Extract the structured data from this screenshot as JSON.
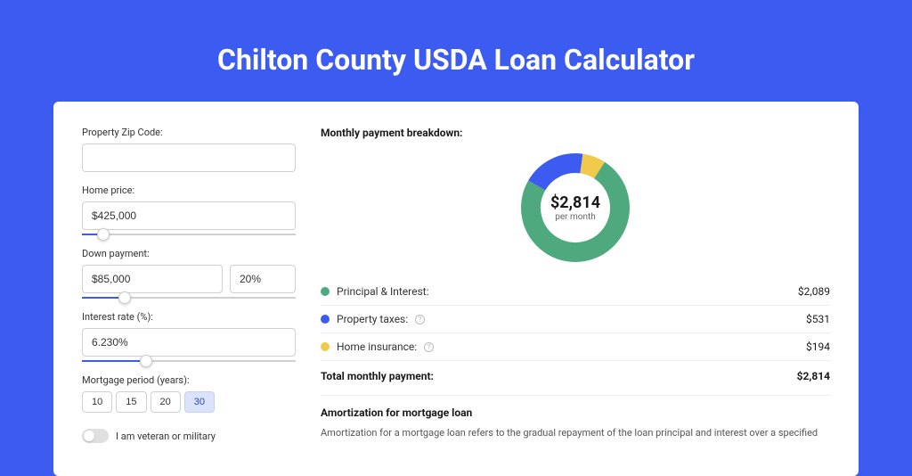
{
  "page": {
    "title": "Chilton County USDA Loan Calculator",
    "background_color": "#3c5bf0",
    "card_background": "#ffffff"
  },
  "form": {
    "zip": {
      "label": "Property Zip Code:",
      "value": ""
    },
    "home_price": {
      "label": "Home price:",
      "value": "$425,000",
      "slider_pct": 10
    },
    "down_payment": {
      "label": "Down payment:",
      "value": "$85,000",
      "pct_value": "20%",
      "slider_pct": 20
    },
    "interest_rate": {
      "label": "Interest rate (%):",
      "value": "6.230%",
      "slider_pct": 30
    },
    "mortgage_period": {
      "label": "Mortgage period (years):",
      "options": [
        "10",
        "15",
        "20",
        "30"
      ],
      "selected_index": 3
    },
    "veteran": {
      "label": "I am veteran or military",
      "checked": false
    }
  },
  "breakdown": {
    "title": "Monthly payment breakdown:",
    "center_amount": "$2,814",
    "center_sub": "per month",
    "items": [
      {
        "label": "Principal & Interest:",
        "value": "$2,089",
        "numeric": 2089,
        "color": "#4fa97e",
        "has_info": false
      },
      {
        "label": "Property taxes:",
        "value": "$531",
        "numeric": 531,
        "color": "#3c5bf0",
        "has_info": true
      },
      {
        "label": "Home insurance:",
        "value": "$194",
        "numeric": 194,
        "color": "#f1c94b",
        "has_info": true
      }
    ],
    "total_label": "Total monthly payment:",
    "total_value": "$2,814",
    "donut": {
      "radius": 50,
      "thickness": 22,
      "background_color": "#ffffff"
    }
  },
  "amortization": {
    "title": "Amortization for mortgage loan",
    "text": "Amortization for a mortgage loan refers to the gradual repayment of the loan principal and interest over a specified"
  }
}
